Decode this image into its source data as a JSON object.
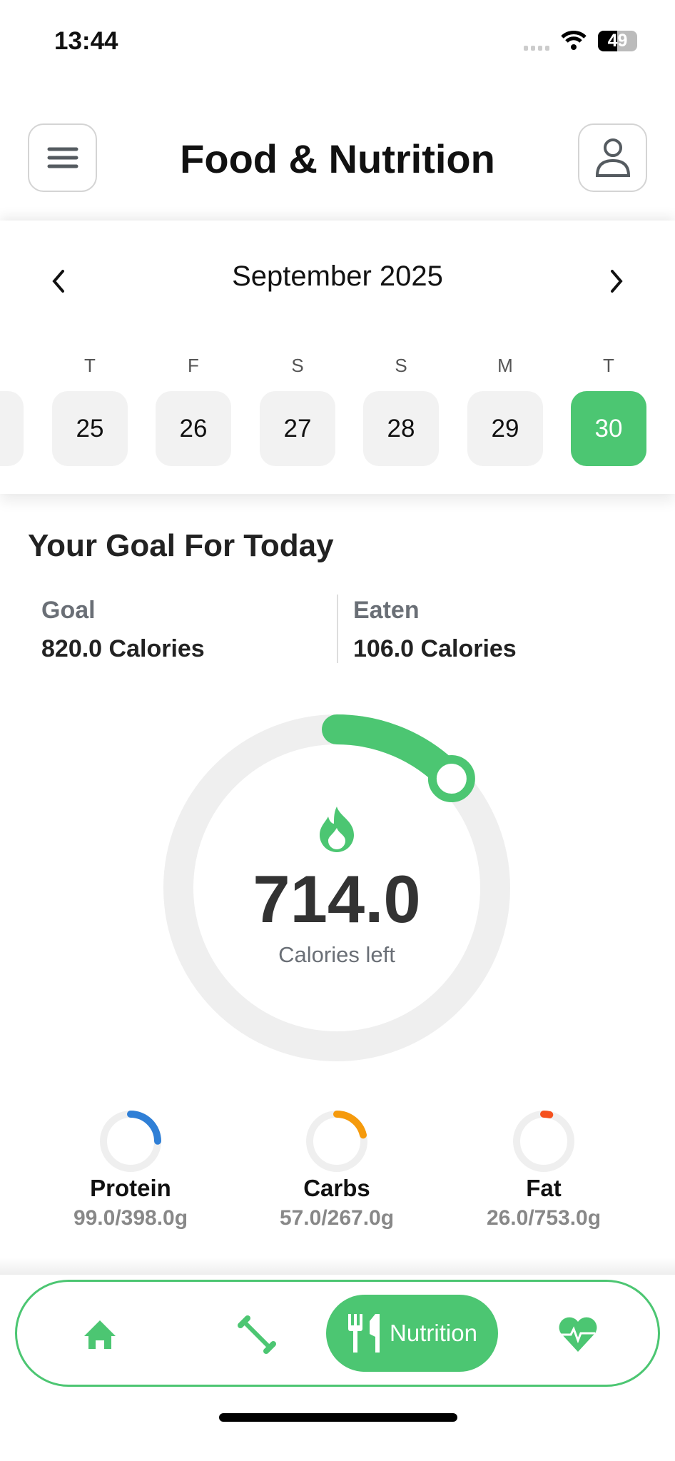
{
  "status_bar": {
    "time": "13:44",
    "battery": "49"
  },
  "header": {
    "title": "Food & Nutrition",
    "menu_icon": "hamburger-icon",
    "profile_icon": "user-icon"
  },
  "calendar": {
    "month": "September 2025",
    "days": [
      {
        "dow": "T",
        "day": "25"
      },
      {
        "dow": "F",
        "day": "26"
      },
      {
        "dow": "S",
        "day": "27"
      },
      {
        "dow": "S",
        "day": "28"
      },
      {
        "dow": "M",
        "day": "29"
      },
      {
        "dow": "T",
        "day": "30",
        "selected": true
      }
    ]
  },
  "goal": {
    "heading": "Your Goal For Today",
    "goal_label": "Goal",
    "goal_value": "820.0 Calories",
    "eaten_label": "Eaten",
    "eaten_value": "106.0 Calories",
    "remaining": "714.0",
    "remaining_label": "Calories left",
    "progress_fraction": 0.129
  },
  "macros": [
    {
      "name": "Protein",
      "value": "99.0/398.0g",
      "fraction": 0.249,
      "color": "#2f7fd6"
    },
    {
      "name": "Carbs",
      "value": "57.0/267.0g",
      "fraction": 0.213,
      "color": "#f59a0c"
    },
    {
      "name": "Fat",
      "value": "26.0/753.0g",
      "fraction": 0.035,
      "color": "#f5511e"
    }
  ],
  "nav": {
    "active_label": "Nutrition",
    "items": [
      "home-icon",
      "dumbbell-icon",
      "fork-knife-icon",
      "heart-pulse-icon"
    ]
  },
  "colors": {
    "accent": "#4cc672",
    "track": "#efefef"
  }
}
